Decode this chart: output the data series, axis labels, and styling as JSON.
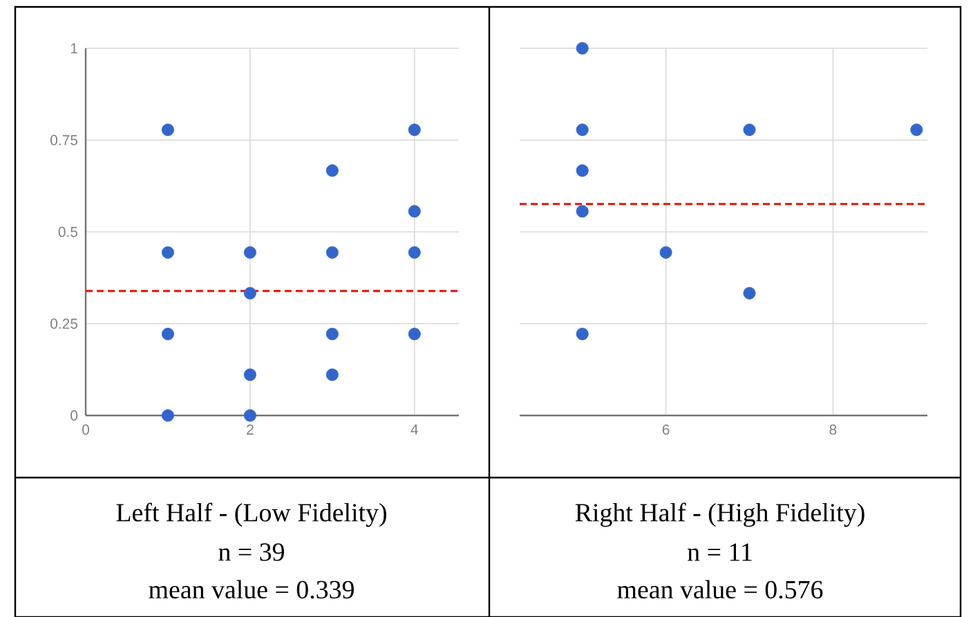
{
  "chart_data": [
    {
      "type": "scatter",
      "x": [
        1,
        1,
        1,
        1,
        2,
        2,
        2,
        2,
        3,
        3,
        3,
        3,
        4,
        4,
        4,
        4
      ],
      "values": [
        0,
        0.222,
        0.444,
        0.778,
        0,
        0.111,
        0.333,
        0.444,
        0.111,
        0.222,
        0.444,
        0.667,
        0.222,
        0.444,
        0.556,
        0.778
      ],
      "color": "#3366cc",
      "xlim": [
        0,
        4.54
      ],
      "xticks": [
        0,
        2,
        4
      ],
      "ylim": [
        0,
        1
      ],
      "yticks": [
        0,
        0.25,
        0.5,
        0.75,
        1
      ],
      "grid": true,
      "ref_lines": [
        {
          "axis": "y",
          "value": 0.339,
          "color": "#e62117",
          "line_style": "dashed"
        }
      ],
      "annotations": [
        "Left Half - (Low Fidelity)",
        "n = 39",
        "mean value = 0.339"
      ]
    },
    {
      "type": "scatter",
      "x": [
        5,
        5,
        5,
        5,
        5,
        6,
        7,
        7,
        9
      ],
      "values": [
        1,
        0.778,
        0.667,
        0.556,
        0.222,
        0.444,
        0.778,
        0.333,
        0.778
      ],
      "color": "#3366cc",
      "xlim": [
        4.25,
        9.13
      ],
      "xticks": [
        6,
        8
      ],
      "ylim": [
        0,
        1
      ],
      "yticks": [
        {
          "value": 0,
          "label": null
        },
        {
          "value": 0.25,
          "label": null
        },
        {
          "value": 0.5,
          "label": null
        },
        {
          "value": 0.75,
          "label": null
        },
        {
          "value": 1,
          "label": null
        }
      ],
      "grid": true,
      "tick_labels": "x",
      "ref_lines": [
        {
          "axis": "y",
          "value": 0.576,
          "color": "#e62117",
          "line_style": "dashed"
        }
      ],
      "annotations": [
        "Right Half - (High Fidelity)",
        "n = 11",
        "mean value  = 0.576"
      ]
    }
  ]
}
